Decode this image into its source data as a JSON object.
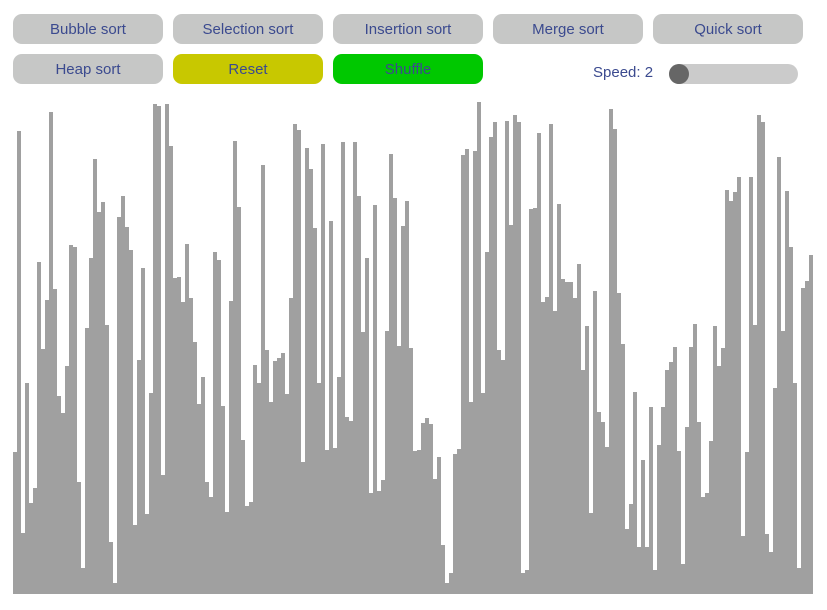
{
  "toolbar": {
    "buttons": [
      {
        "label": "Bubble sort",
        "color": "#c6c7c6"
      },
      {
        "label": "Selection sort",
        "color": "#c6c7c6"
      },
      {
        "label": "Insertion sort",
        "color": "#c6c7c6"
      },
      {
        "label": "Merge sort",
        "color": "#c6c7c6"
      },
      {
        "label": "Quick sort",
        "color": "#c6c7c6"
      },
      {
        "label": "Heap sort",
        "color": "#c6c7c6"
      },
      {
        "label": "Reset",
        "color": "#c8c800"
      },
      {
        "label": "Shuffle",
        "color": "#00c800"
      }
    ]
  },
  "speed": {
    "label": "Speed: 2",
    "fraction": 0.0
  },
  "bars": {
    "color": "#a0a0a0",
    "max_value": 450,
    "values": [
      129,
      422,
      56,
      192,
      83,
      97,
      302,
      223,
      268,
      439,
      278,
      180,
      165,
      208,
      318,
      316,
      102,
      24,
      242,
      306,
      396,
      348,
      357,
      245,
      47,
      10,
      343,
      363,
      334,
      313,
      63,
      213,
      297,
      73,
      183,
      446,
      445,
      108,
      446,
      408,
      288,
      289,
      266,
      319,
      270,
      230,
      173,
      198,
      102,
      88,
      312,
      304,
      171,
      75,
      267,
      413,
      353,
      140,
      80,
      84,
      209,
      192,
      391,
      222,
      175,
      212,
      215,
      220,
      182,
      270,
      428,
      423,
      120,
      406,
      387,
      333,
      192,
      410,
      131,
      340,
      133,
      198,
      412,
      161,
      158,
      412,
      363,
      239,
      306,
      92,
      354,
      94,
      104,
      240,
      401,
      361,
      226,
      335,
      358,
      224,
      130,
      131,
      156,
      160,
      155,
      105,
      125,
      45,
      10,
      19,
      128,
      132,
      400,
      405,
      175,
      404,
      448,
      183,
      312,
      416,
      430,
      222,
      213,
      431,
      336,
      436,
      430,
      19,
      22,
      351,
      352,
      420,
      266,
      271,
      428,
      258,
      355,
      287,
      284,
      284,
      270,
      301,
      204,
      244,
      74,
      276,
      166,
      157,
      134,
      442,
      424,
      274,
      228,
      59,
      82,
      184,
      43,
      122,
      43,
      170,
      22,
      136,
      170,
      204,
      211,
      225,
      130,
      27,
      152,
      225,
      246,
      157,
      88,
      92,
      139,
      244,
      208,
      224,
      368,
      358,
      366,
      380,
      53,
      129,
      380,
      245,
      436,
      430,
      55,
      38,
      188,
      398,
      240,
      367,
      316,
      192,
      24,
      279,
      285,
      309
    ]
  }
}
